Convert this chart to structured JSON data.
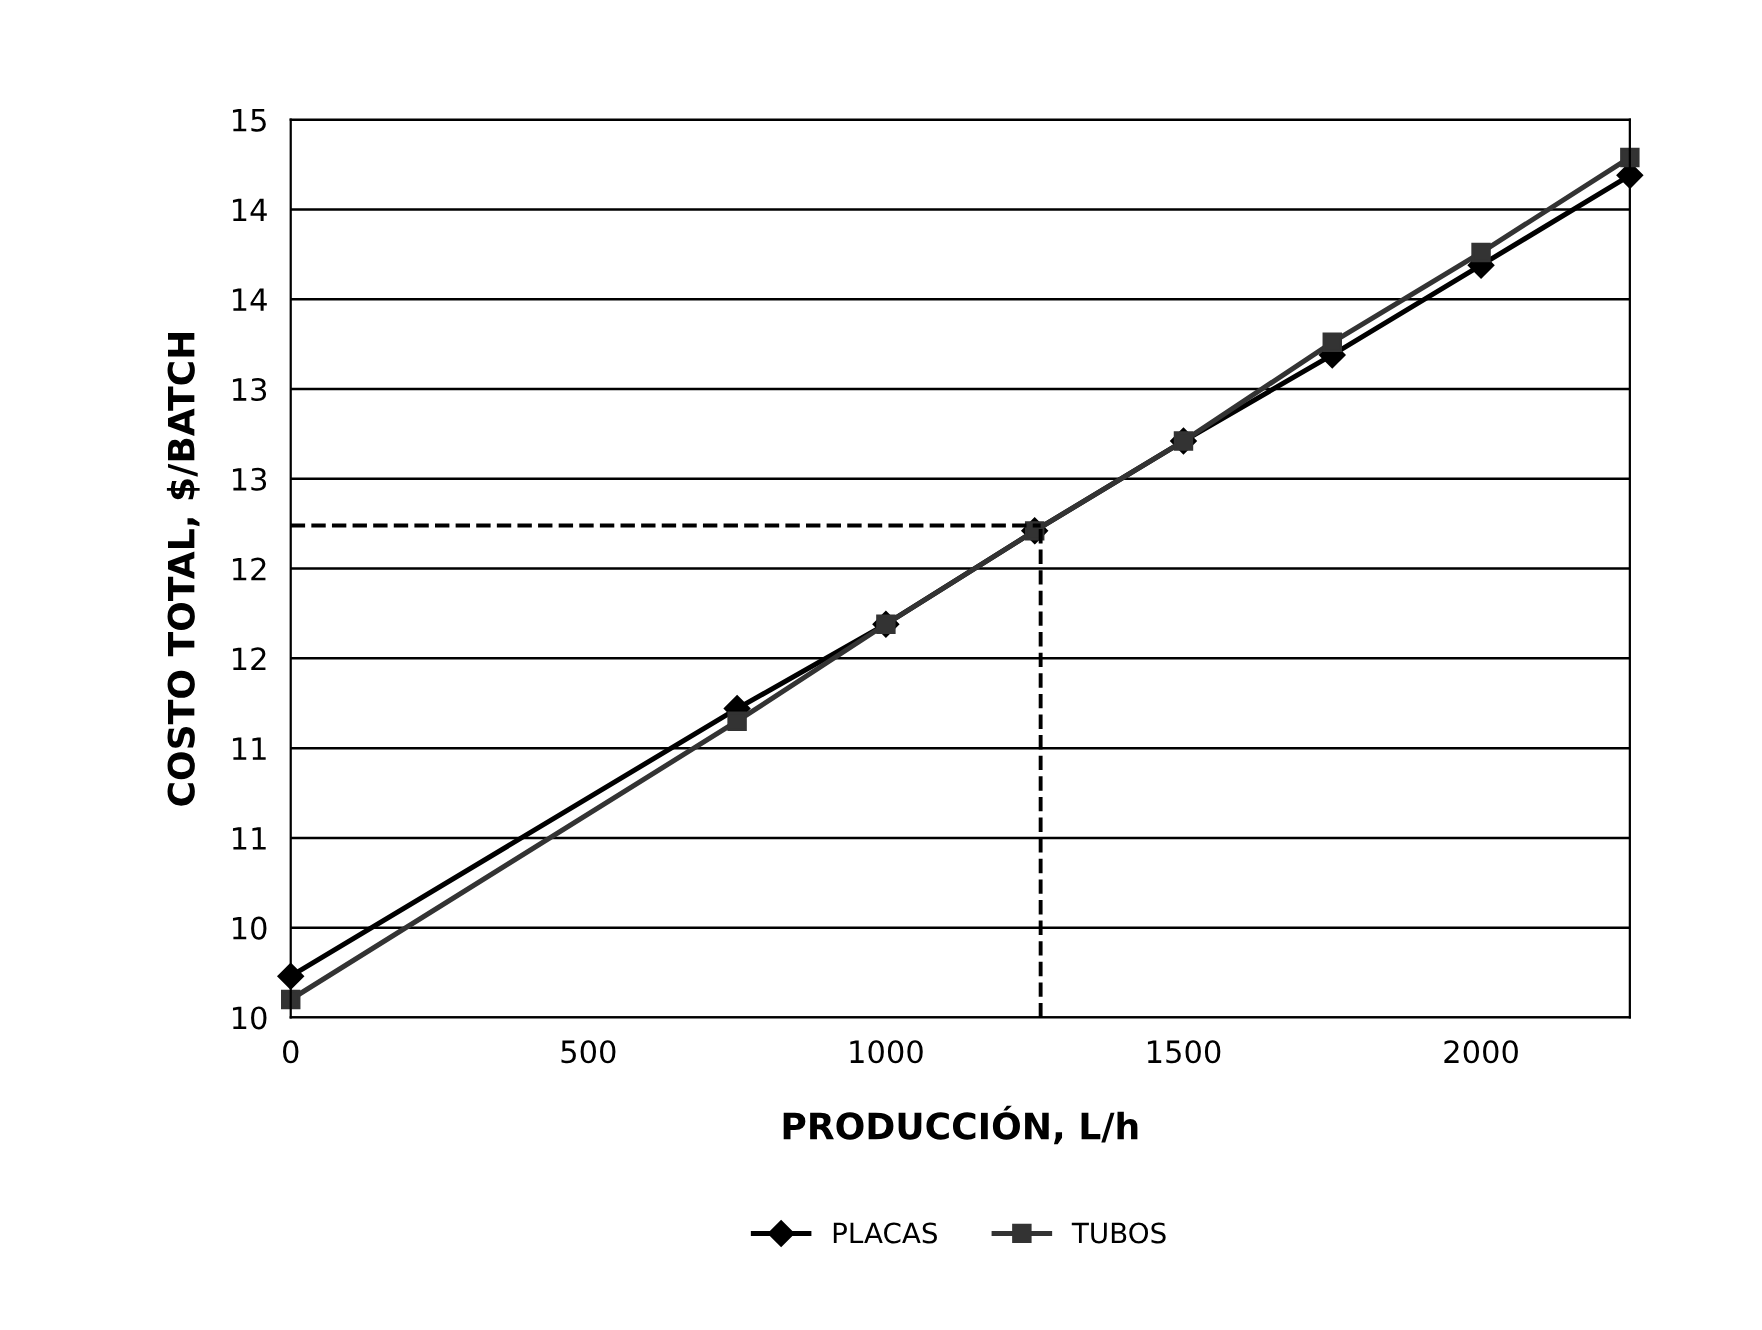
{
  "chart_data": {
    "type": "line",
    "xlabel": "PRODUCCIÓN, L/h",
    "ylabel": "COSTO TOTAL, $/BATCH",
    "x": [
      0,
      750,
      1000,
      1250,
      1500,
      1750,
      2000,
      2250
    ],
    "series": [
      {
        "name": "PLACAS",
        "color": "#000000",
        "marker": "diamond",
        "values": [
          10.23,
          11.72,
          12.19,
          12.71,
          13.21,
          13.69,
          14.19,
          14.69
        ]
      },
      {
        "name": "TUBOS",
        "color": "#333333",
        "marker": "square",
        "values": [
          10.1,
          11.65,
          12.19,
          12.71,
          13.21,
          13.76,
          14.26,
          14.79
        ]
      }
    ],
    "ref_lines": [
      {
        "axis": "y",
        "value": 12.74,
        "color": "#000000",
        "line_style": "dashed"
      },
      {
        "axis": "x",
        "value": 1260,
        "color": "#000000",
        "line_style": "dashed"
      }
    ],
    "xlim": [
      0,
      2250
    ],
    "xticks": [
      0,
      500,
      1000,
      1500,
      2000
    ],
    "ylim": [
      10,
      15
    ],
    "yticks": [
      10,
      {
        "value": 10.5,
        "label": "10"
      },
      {
        "value": 11,
        "label": "11"
      },
      {
        "value": 11.5,
        "label": "11"
      },
      {
        "value": 12,
        "label": "12"
      },
      {
        "value": 12.5,
        "label": "12"
      },
      {
        "value": 13,
        "label": "13"
      },
      {
        "value": 13.5,
        "label": "13"
      },
      {
        "value": 14,
        "label": "14"
      },
      {
        "value": 14.5,
        "label": "14"
      },
      15
    ],
    "grid": "y",
    "legend": "bottom"
  }
}
